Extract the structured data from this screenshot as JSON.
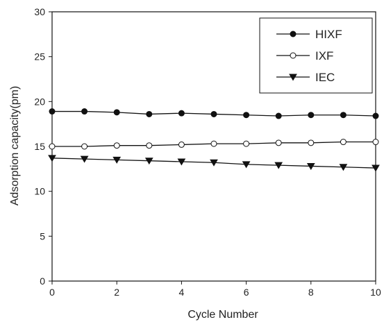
{
  "chart_data": {
    "type": "line",
    "title": "",
    "xlabel": "Cycle Number",
    "ylabel": "Adsorption capacity(pm)",
    "xlim": [
      0,
      10
    ],
    "ylim": [
      0,
      30
    ],
    "xticks": [
      "0",
      "2",
      "4",
      "6",
      "8",
      "10"
    ],
    "yticks": [
      "0",
      "5",
      "10",
      "15",
      "20",
      "25",
      "30"
    ],
    "grid": false,
    "legend_position": "top-right",
    "x": [
      0,
      1,
      2,
      3,
      4,
      5,
      6,
      7,
      8,
      9,
      10
    ],
    "series": [
      {
        "name": "HIXF",
        "marker": "filled-circle",
        "values": [
          18.9,
          18.9,
          18.8,
          18.6,
          18.7,
          18.6,
          18.5,
          18.4,
          18.5,
          18.5,
          18.4
        ]
      },
      {
        "name": "IXF",
        "marker": "open-circle",
        "values": [
          15.0,
          15.0,
          15.1,
          15.1,
          15.2,
          15.3,
          15.3,
          15.4,
          15.4,
          15.5,
          15.5
        ]
      },
      {
        "name": "IEC",
        "marker": "filled-triangle-down",
        "values": [
          13.7,
          13.6,
          13.5,
          13.4,
          13.3,
          13.2,
          13.0,
          12.9,
          12.8,
          12.7,
          12.6
        ]
      }
    ]
  }
}
